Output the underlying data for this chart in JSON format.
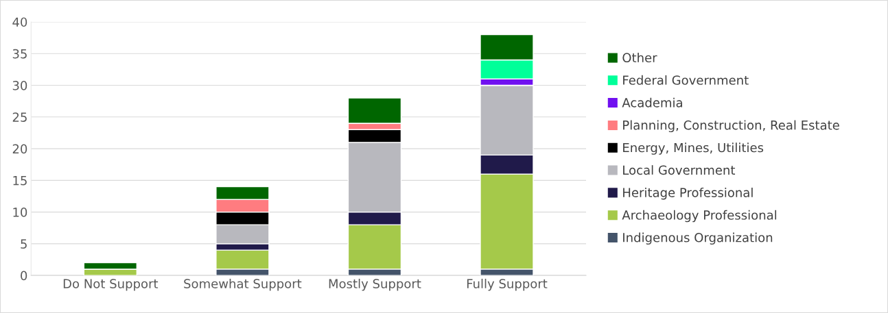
{
  "chart_data": {
    "type": "bar",
    "stacked": true,
    "categories": [
      "Do Not Support",
      "Somewhat Support",
      "Mostly Support",
      "Fully Support"
    ],
    "series": [
      {
        "name": "Indigenous Organization",
        "color": "#44546a",
        "values": [
          0,
          1,
          1,
          1
        ]
      },
      {
        "name": "Archaeology Professional",
        "color": "#a5c94a",
        "values": [
          1,
          3,
          7,
          15
        ]
      },
      {
        "name": "Heritage Professional",
        "color": "#201a4a",
        "values": [
          0,
          1,
          2,
          3
        ]
      },
      {
        "name": "Local Government",
        "color": "#b8b8be",
        "values": [
          0,
          3,
          11,
          11
        ]
      },
      {
        "name": "Energy, Mines, Utilities",
        "color": "#000000",
        "values": [
          0,
          2,
          2,
          0
        ]
      },
      {
        "name": "Planning, Construction, Real Estate",
        "color": "#ff7c80",
        "values": [
          0,
          2,
          1,
          0
        ]
      },
      {
        "name": "Academia",
        "color": "#7010f0",
        "values": [
          0,
          0,
          0,
          1
        ]
      },
      {
        "name": "Federal Government",
        "color": "#00ff99",
        "values": [
          0,
          0,
          0,
          3
        ]
      },
      {
        "name": "Other",
        "color": "#006600",
        "values": [
          1,
          2,
          4,
          4
        ]
      }
    ],
    "ylim": [
      0,
      40
    ],
    "yticks": [
      0,
      5,
      10,
      15,
      20,
      25,
      30,
      35,
      40
    ],
    "grid": "y",
    "legend": "right"
  }
}
